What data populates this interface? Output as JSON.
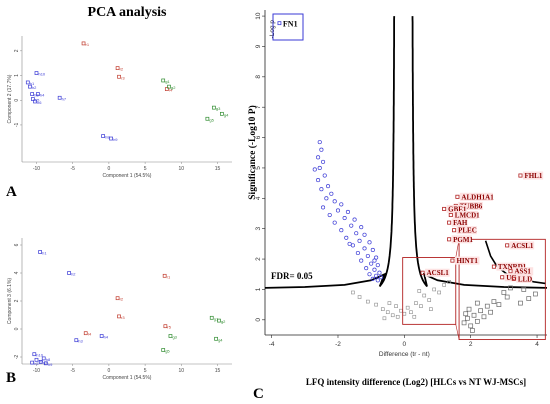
{
  "header": {
    "title": "PCA analysis"
  },
  "panels": {
    "a": "A",
    "b": "B",
    "c": "C"
  },
  "colors": {
    "blue": "#3a3ad6",
    "red": "#c0392b",
    "green": "#2e8b2e",
    "grey": "#8c8c8c",
    "darkred": "#b22222"
  },
  "chart_data": [
    {
      "type": "scatter",
      "panel": "A",
      "xlabel": "Component 1 (54.5%)",
      "ylabel": "Component 2 (17.7%)",
      "xlim": [
        -12,
        17
      ],
      "ylim": [
        -2.5,
        2.6
      ],
      "xticks": [
        "-10",
        "-5",
        "0",
        "5",
        "10",
        "15"
      ],
      "yticks": [
        "-1",
        "0",
        "1",
        "2"
      ],
      "series": [
        {
          "color": "blue",
          "points": [
            {
              "x": -11.2,
              "y": 0.72,
              "label": "h1"
            },
            {
              "x": -10.9,
              "y": 0.55,
              "label": "h2"
            },
            {
              "x": -10.6,
              "y": 0.25,
              "label": "h3"
            },
            {
              "x": -9.8,
              "y": 0.25,
              "label": "h4"
            },
            {
              "x": -10.5,
              "y": 0.05,
              "label": "h5"
            },
            {
              "x": -10.2,
              "y": -0.05,
              "label": "h6"
            },
            {
              "x": -6.8,
              "y": 0.1,
              "label": "h7"
            },
            {
              "x": -0.8,
              "y": -1.45,
              "label": "h8"
            },
            {
              "x": 0.3,
              "y": -1.55,
              "label": "h9"
            },
            {
              "x": -10.0,
              "y": 1.1,
              "label": "h10"
            }
          ]
        },
        {
          "color": "red",
          "points": [
            {
              "x": -3.5,
              "y": 2.3,
              "label": "r1"
            },
            {
              "x": 1.2,
              "y": 1.3,
              "label": "r2"
            },
            {
              "x": 1.4,
              "y": 0.95,
              "label": "r3"
            },
            {
              "x": 8.0,
              "y": 0.45,
              "label": "r4"
            }
          ]
        },
        {
          "color": "green",
          "points": [
            {
              "x": 7.5,
              "y": 0.8,
              "label": "g1"
            },
            {
              "x": 8.3,
              "y": 0.55,
              "label": "g2"
            },
            {
              "x": 14.5,
              "y": -0.3,
              "label": "g3"
            },
            {
              "x": 15.6,
              "y": -0.55,
              "label": "g4"
            },
            {
              "x": 13.6,
              "y": -0.75,
              "label": "g5"
            }
          ]
        }
      ]
    },
    {
      "type": "scatter",
      "panel": "B",
      "xlabel": "Component 1 (54.5%)",
      "ylabel": "Component 3 (6.1%)",
      "xlim": [
        -12,
        17
      ],
      "ylim": [
        -2.5,
        6.5
      ],
      "xticks": [
        "-10",
        "-5",
        "0",
        "5",
        "10",
        "15"
      ],
      "yticks": [
        "-2",
        "0",
        "2",
        "4",
        "6"
      ],
      "series": [
        {
          "color": "blue",
          "points": [
            {
              "x": -9.5,
              "y": 5.5,
              "label": "h1"
            },
            {
              "x": -5.5,
              "y": 4.0,
              "label": "h2"
            },
            {
              "x": -4.5,
              "y": -0.8,
              "label": "h3"
            },
            {
              "x": -1.0,
              "y": -0.5,
              "label": "h4"
            },
            {
              "x": -10.6,
              "y": -2.4,
              "label": "h5"
            },
            {
              "x": -10.0,
              "y": -2.2,
              "label": "h6"
            },
            {
              "x": -9.4,
              "y": -2.35,
              "label": "h7"
            },
            {
              "x": -9.0,
              "y": -2.1,
              "label": "h8"
            },
            {
              "x": -8.7,
              "y": -2.45,
              "label": "h9"
            },
            {
              "x": -10.3,
              "y": -1.8,
              "label": "h10"
            }
          ]
        },
        {
          "color": "red",
          "points": [
            {
              "x": 7.7,
              "y": 3.8,
              "label": "r1"
            },
            {
              "x": 1.2,
              "y": 2.2,
              "label": "r2"
            },
            {
              "x": 1.4,
              "y": 0.9,
              "label": "r3"
            },
            {
              "x": -3.2,
              "y": -0.3,
              "label": "r4"
            },
            {
              "x": 7.8,
              "y": 0.2,
              "label": "r5"
            }
          ]
        },
        {
          "color": "green",
          "points": [
            {
              "x": 14.2,
              "y": 0.8,
              "label": "g1"
            },
            {
              "x": 15.2,
              "y": 0.6,
              "label": "g2"
            },
            {
              "x": 8.5,
              "y": -0.5,
              "label": "g3"
            },
            {
              "x": 14.8,
              "y": -0.7,
              "label": "g4"
            },
            {
              "x": 7.5,
              "y": -1.5,
              "label": "g5"
            }
          ]
        }
      ]
    },
    {
      "type": "scatter",
      "panel": "C",
      "xlabel": "Difference (tr - nt)",
      "xaxis_title": "LFQ intensity difference (Log2) [HLCs vs NT WJ-MSCs]",
      "ylabel": "Significance (-Log10 P)",
      "ylabel_inner": "-Log p",
      "xlim": [
        -4.2,
        4.3
      ],
      "ylim": [
        -0.5,
        10.2
      ],
      "xticks": [
        "-4",
        "-2",
        "0",
        "2",
        "4"
      ],
      "yticks": [
        "0",
        "1",
        "2",
        "3",
        "4",
        "5",
        "6",
        "7",
        "8",
        "9",
        "10"
      ],
      "threshold_label": "FDR= 0.05",
      "highlight": {
        "label": "FN1",
        "x": -3.75,
        "y": 9.75
      },
      "blue_points": [
        {
          "x": -2.55,
          "y": 5.85
        },
        {
          "x": -2.5,
          "y": 5.6
        },
        {
          "x": -2.6,
          "y": 5.35
        },
        {
          "x": -2.45,
          "y": 5.2
        },
        {
          "x": -2.55,
          "y": 5.0
        },
        {
          "x": -2.4,
          "y": 4.75
        },
        {
          "x": -2.6,
          "y": 4.6
        },
        {
          "x": -2.3,
          "y": 4.4
        },
        {
          "x": -2.5,
          "y": 4.3
        },
        {
          "x": -2.2,
          "y": 4.15
        },
        {
          "x": -2.35,
          "y": 4.0
        },
        {
          "x": -2.1,
          "y": 3.9
        },
        {
          "x": -1.9,
          "y": 3.8
        },
        {
          "x": -2.45,
          "y": 3.7
        },
        {
          "x": -2.0,
          "y": 3.6
        },
        {
          "x": -1.7,
          "y": 3.55
        },
        {
          "x": -2.25,
          "y": 3.45
        },
        {
          "x": -1.8,
          "y": 3.35
        },
        {
          "x": -1.5,
          "y": 3.3
        },
        {
          "x": -2.1,
          "y": 3.2
        },
        {
          "x": -1.6,
          "y": 3.1
        },
        {
          "x": -1.3,
          "y": 3.05
        },
        {
          "x": -1.9,
          "y": 2.95
        },
        {
          "x": -1.45,
          "y": 2.85
        },
        {
          "x": -1.2,
          "y": 2.8
        },
        {
          "x": -1.75,
          "y": 2.7
        },
        {
          "x": -1.35,
          "y": 2.6
        },
        {
          "x": -1.05,
          "y": 2.55
        },
        {
          "x": -1.55,
          "y": 2.45
        },
        {
          "x": -1.2,
          "y": 2.35
        },
        {
          "x": -0.95,
          "y": 2.3
        },
        {
          "x": -1.4,
          "y": 2.2
        },
        {
          "x": -1.1,
          "y": 2.1
        },
        {
          "x": -0.85,
          "y": 2.05
        },
        {
          "x": -1.3,
          "y": 1.95
        },
        {
          "x": -1.0,
          "y": 1.85
        },
        {
          "x": -0.8,
          "y": 1.8
        },
        {
          "x": -1.15,
          "y": 1.7
        },
        {
          "x": -0.9,
          "y": 1.65
        },
        {
          "x": -0.75,
          "y": 1.55
        },
        {
          "x": -1.05,
          "y": 1.5
        },
        {
          "x": -0.85,
          "y": 1.45
        },
        {
          "x": -0.7,
          "y": 1.4
        },
        {
          "x": -0.95,
          "y": 1.35
        },
        {
          "x": -0.8,
          "y": 1.3
        },
        {
          "x": -2.7,
          "y": 4.95
        },
        {
          "x": -1.65,
          "y": 2.5
        },
        {
          "x": -0.9,
          "y": 1.95
        }
      ],
      "red_labeled": [
        {
          "x": 3.5,
          "y": 4.75,
          "label": "FHL1"
        },
        {
          "x": 1.6,
          "y": 4.05,
          "label": "ALDH1A1"
        },
        {
          "x": 1.55,
          "y": 3.75,
          "label": "TUBB6"
        },
        {
          "x": 1.2,
          "y": 3.65,
          "label": "GBE1"
        },
        {
          "x": 1.4,
          "y": 3.45,
          "label": "LMCD1"
        },
        {
          "x": 1.35,
          "y": 3.2,
          "label": "FAH"
        },
        {
          "x": 1.5,
          "y": 2.95,
          "label": "PLEC"
        },
        {
          "x": 1.35,
          "y": 2.65,
          "label": "PGM1"
        },
        {
          "x": 1.45,
          "y": 1.95,
          "label": "HINT1"
        },
        {
          "x": 0.55,
          "y": 1.55,
          "label": "ACSL1"
        },
        {
          "x": 3.1,
          "y": 2.45,
          "label": "ACSL1"
        },
        {
          "x": 2.7,
          "y": 1.75,
          "label": "TXNRD1"
        },
        {
          "x": 3.2,
          "y": 1.6,
          "label": "ASS1"
        },
        {
          "x": 2.95,
          "y": 1.4,
          "label": "UGP2"
        },
        {
          "x": 3.3,
          "y": 1.35,
          "label": "LLD"
        }
      ],
      "grey_points": [
        {
          "x": -1.35,
          "y": 0.75
        },
        {
          "x": -1.1,
          "y": 0.6
        },
        {
          "x": -0.85,
          "y": 0.5
        },
        {
          "x": -0.65,
          "y": 0.35
        },
        {
          "x": -0.5,
          "y": 0.25
        },
        {
          "x": -0.35,
          "y": 0.15
        },
        {
          "x": -0.2,
          "y": 0.1
        },
        {
          "x": -0.1,
          "y": 0.3
        },
        {
          "x": 0.0,
          "y": 0.2
        },
        {
          "x": 0.1,
          "y": 0.4
        },
        {
          "x": 0.2,
          "y": 0.25
        },
        {
          "x": 0.35,
          "y": 0.55
        },
        {
          "x": 0.5,
          "y": 0.45
        },
        {
          "x": 0.6,
          "y": 0.8
        },
        {
          "x": 0.75,
          "y": 0.65
        },
        {
          "x": 0.9,
          "y": 1.0
        },
        {
          "x": 1.05,
          "y": 0.9
        },
        {
          "x": 1.2,
          "y": 1.15
        },
        {
          "x": -0.45,
          "y": 0.55
        },
        {
          "x": -0.25,
          "y": 0.45
        },
        {
          "x": 0.3,
          "y": 0.1
        },
        {
          "x": -0.6,
          "y": 0.05
        },
        {
          "x": 0.8,
          "y": 0.35
        },
        {
          "x": -1.55,
          "y": 0.9
        },
        {
          "x": 0.45,
          "y": 0.95
        },
        {
          "x": 1.35,
          "y": 1.25
        }
      ]
    }
  ]
}
